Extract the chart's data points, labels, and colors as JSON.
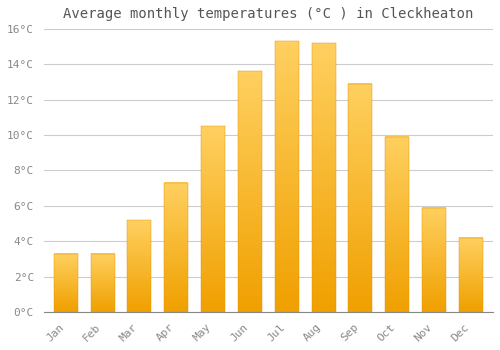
{
  "title": "Average monthly temperatures (°C ) in Cleckheaton",
  "months": [
    "Jan",
    "Feb",
    "Mar",
    "Apr",
    "May",
    "Jun",
    "Jul",
    "Aug",
    "Sep",
    "Oct",
    "Nov",
    "Dec"
  ],
  "values": [
    3.3,
    3.3,
    5.2,
    7.3,
    10.5,
    13.6,
    15.3,
    15.2,
    12.9,
    9.9,
    5.9,
    4.2
  ],
  "bar_color_light": "#FFD060",
  "bar_color_dark": "#F0A000",
  "ylim": [
    0,
    16
  ],
  "yticks": [
    0,
    2,
    4,
    6,
    8,
    10,
    12,
    14,
    16
  ],
  "background_color": "#FFFFFF",
  "grid_color": "#CCCCCC",
  "title_fontsize": 10,
  "tick_fontsize": 8,
  "bar_width": 0.65
}
